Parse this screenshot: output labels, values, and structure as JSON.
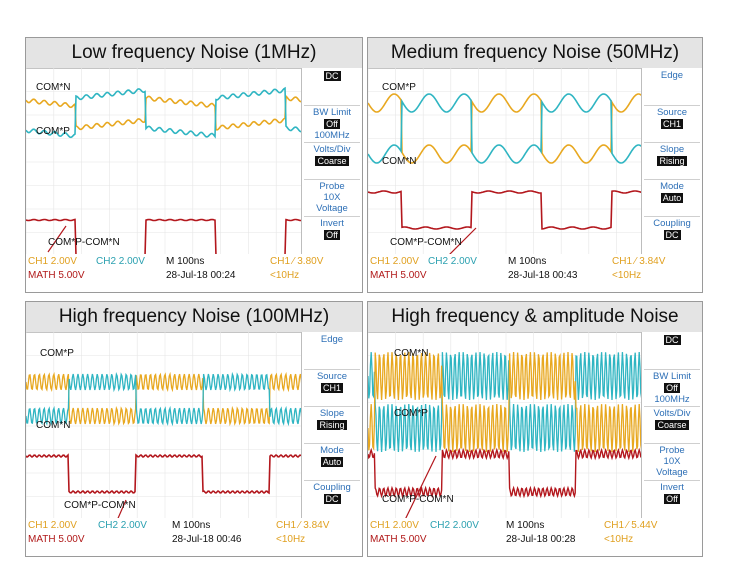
{
  "panels": [
    {
      "title": "Low frequency Noise (1MHz)",
      "labels": {
        "top": "COM*N",
        "mid": "COM*P",
        "diff": "COM*P-COM*N"
      },
      "menu": [
        {
          "label": "",
          "value": "DC"
        },
        {
          "label": "BW Limit",
          "value": "Off",
          "extra": "100MHz"
        },
        {
          "label": "Volts/Div",
          "value": "Coarse"
        },
        {
          "label": "Probe",
          "value": "",
          "extra": "10X\nVoltage"
        },
        {
          "label": "Invert",
          "value": "Off"
        }
      ],
      "status": {
        "ch1": "CH1  2.00V",
        "ch2": "CH2  2.00V",
        "time": "M 100ns",
        "date": "28-Jul-18 00:24",
        "trig": "CH1  ⁄  3.80V",
        "freq": "<10Hz",
        "math": "MATH 5.00V"
      }
    },
    {
      "title": "Medium frequency Noise (50MHz)",
      "labels": {
        "top": "COM*P",
        "mid": "COM*N",
        "diff": "COM*P-COM*N"
      },
      "menu": [
        {
          "label": "Edge",
          "value": ""
        },
        {
          "label": "Source",
          "value": "CH1"
        },
        {
          "label": "Slope",
          "value": "Rising"
        },
        {
          "label": "Mode",
          "value": "Auto"
        },
        {
          "label": "Coupling",
          "value": "DC"
        }
      ],
      "status": {
        "ch1": "CH1  2.00V",
        "ch2": "CH2  2.00V",
        "time": "M 100ns",
        "date": "28-Jul-18 00:43",
        "trig": "CH1  ⁄  3.84V",
        "freq": "<10Hz",
        "math": "MATH 5.00V"
      }
    },
    {
      "title": "High frequency Noise (100MHz)",
      "labels": {
        "top": "COM*P",
        "mid": "COM*N",
        "diff": "COM*P-COM*N"
      },
      "menu": [
        {
          "label": "Edge",
          "value": ""
        },
        {
          "label": "Source",
          "value": "CH1"
        },
        {
          "label": "Slope",
          "value": "Rising"
        },
        {
          "label": "Mode",
          "value": "Auto"
        },
        {
          "label": "Coupling",
          "value": "DC"
        }
      ],
      "status": {
        "ch1": "CH1  2.00V",
        "ch2": "CH2  2.00V",
        "time": "M 100ns",
        "date": "28-Jul-18 00:46",
        "trig": "CH1  ⁄  3.84V",
        "freq": "<10Hz",
        "math": "MATH 5.00V"
      }
    },
    {
      "title": "High frequency & amplitude Noise",
      "labels": {
        "top": "COM*N",
        "mid": "COM*P",
        "diff": "COM*P-COM*N"
      },
      "menu": [
        {
          "label": "",
          "value": "DC"
        },
        {
          "label": "BW Limit",
          "value": "Off",
          "extra": "100MHz"
        },
        {
          "label": "Volts/Div",
          "value": "Coarse"
        },
        {
          "label": "Probe",
          "value": "",
          "extra": "10X\nVoltage"
        },
        {
          "label": "Invert",
          "value": "Off"
        }
      ],
      "status": {
        "ch1": "CH1  2.00V",
        "ch2": "CH2  2.00V",
        "time": "M 100ns",
        "date": "28-Jul-18 00:28",
        "trig": "CH1  ⁄  5.44V",
        "freq": "<10Hz",
        "math": "MATH 5.00V"
      }
    }
  ],
  "colors": {
    "ch1": "#e8a820",
    "ch2": "#2fb5c2",
    "math": "#b3171d",
    "grid": "#e6e6e6",
    "text": "#2d6fb6"
  }
}
